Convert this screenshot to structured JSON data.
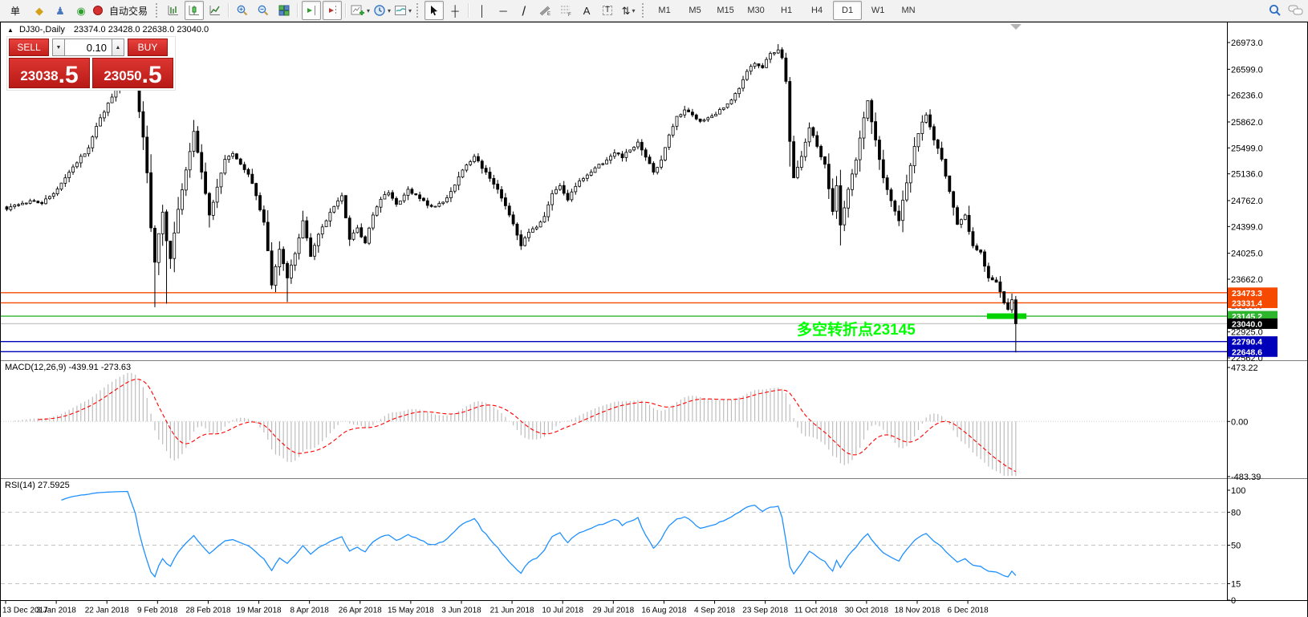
{
  "toolbar": {
    "new_order_label": "单",
    "autotrading_label": "自动交易",
    "icons": {
      "charts": "◆",
      "navigator": "♟",
      "data_window": "◉",
      "crosshair": "┼",
      "vertical_line": "│",
      "horizontal_line": "─",
      "trendline": "/",
      "channel": "E",
      "fibonacci": "F",
      "text": "A",
      "text_label": "T",
      "arrows": "⇅",
      "caret": "▾"
    },
    "timeframes": [
      {
        "label": "M1",
        "active": false
      },
      {
        "label": "M5",
        "active": false
      },
      {
        "label": "M15",
        "active": false
      },
      {
        "label": "M30",
        "active": false
      },
      {
        "label": "H1",
        "active": false
      },
      {
        "label": "H4",
        "active": false
      },
      {
        "label": "D1",
        "active": true
      },
      {
        "label": "W1",
        "active": false
      },
      {
        "label": "MN",
        "active": false
      }
    ]
  },
  "chart_header": {
    "collapse_marker": "▲",
    "symbol_period": "DJ30-,Daily",
    "ohlc": "23374.0 23428.0 22638.0 23040.0"
  },
  "trade_panel": {
    "sell_label": "SELL",
    "buy_label": "BUY",
    "volume": "0.10",
    "spin_down": "▼",
    "spin_up": "▲",
    "sell_price_main": "23038",
    "sell_price_frac": ".5",
    "buy_price_main": "23050",
    "buy_price_frac": ".5",
    "button_color": "#c9201c"
  },
  "indicator_labels": {
    "macd": "MACD(12,26,9) -439.91 -273.63",
    "rsi": "RSI(14) 27.5925"
  },
  "annotation": {
    "text": "多空转折点23145",
    "color": "#00ff00"
  },
  "chart_data": {
    "type": "candlestick",
    "symbol": "DJ30-",
    "period": "Daily",
    "title_ohlc": {
      "open": 23374.0,
      "high": 23428.0,
      "low": 22638.0,
      "close": 23040.0
    },
    "sell_price": 23038.5,
    "buy_price": 23050.5,
    "bars": 260,
    "price_axis_ticks": [
      26973.0,
      26599.0,
      26236.0,
      25862.0,
      25499.0,
      25136.0,
      24762.0,
      24399.0,
      24025.0,
      23662.0,
      23299.0,
      22925.0,
      22562.0
    ],
    "marked_levels": [
      {
        "price": 23473.3,
        "label": "23473.3",
        "color": "#f64a00",
        "kind": "resistance-line"
      },
      {
        "price": 23331.4,
        "label": "23331.4",
        "color": "#f64a00",
        "kind": "resistance-line"
      },
      {
        "price": 23145.2,
        "label": "23145.2",
        "color": "#2eb52e",
        "kind": "pivot-line"
      },
      {
        "price": 23040.0,
        "label": "23040.0",
        "color": "#000000",
        "line_color": "#c8c8c8",
        "kind": "current-price"
      },
      {
        "price": 22790.4,
        "label": "22790.4",
        "color": "#0000bb",
        "kind": "support-line"
      },
      {
        "price": 22648.6,
        "label": "22648.6",
        "color": "#0000bb",
        "kind": "support-line"
      }
    ],
    "highlight_box": {
      "price": 23145.2,
      "color": "#00d300"
    },
    "date_labels": [
      "13 Dec 2017",
      "3 Jan 2018",
      "22 Jan 2018",
      "9 Feb 2018",
      "28 Feb 2018",
      "19 Mar 2018",
      "8 Apr 2018",
      "26 Apr 2018",
      "15 May 2018",
      "3 Jun 2018",
      "21 Jun 2018",
      "10 Jul 2018",
      "29 Jul 2018",
      "16 Aug 2018",
      "4 Sep 2018",
      "23 Sep 2018",
      "11 Oct 2018",
      "30 Oct 2018",
      "18 Nov 2018",
      "6 Dec 2018"
    ],
    "bars_per_date_label": 13,
    "close_waypoints": [
      [
        0,
        24640
      ],
      [
        3,
        24700
      ],
      [
        6,
        24760
      ],
      [
        9,
        24720
      ],
      [
        12,
        24860
      ],
      [
        15,
        25080
      ],
      [
        18,
        25290
      ],
      [
        21,
        25500
      ],
      [
        24,
        25920
      ],
      [
        27,
        26210
      ],
      [
        29,
        26390
      ],
      [
        31,
        26560
      ],
      [
        33,
        26320
      ],
      [
        35,
        25650
      ],
      [
        36,
        25150
      ],
      [
        37,
        24380
      ],
      [
        38,
        23900
      ],
      [
        39,
        24300
      ],
      [
        40,
        24600
      ],
      [
        41,
        24200
      ],
      [
        42,
        23950
      ],
      [
        44,
        24640
      ],
      [
        46,
        25190
      ],
      [
        48,
        25730
      ],
      [
        50,
        25160
      ],
      [
        52,
        24560
      ],
      [
        54,
        24950
      ],
      [
        56,
        25340
      ],
      [
        58,
        25420
      ],
      [
        60,
        25270
      ],
      [
        62,
        25130
      ],
      [
        64,
        24830
      ],
      [
        66,
        24460
      ],
      [
        67,
        24060
      ],
      [
        68,
        23580
      ],
      [
        70,
        24080
      ],
      [
        72,
        23680
      ],
      [
        74,
        24020
      ],
      [
        76,
        24480
      ],
      [
        78,
        23980
      ],
      [
        80,
        24290
      ],
      [
        82,
        24480
      ],
      [
        84,
        24680
      ],
      [
        86,
        24830
      ],
      [
        88,
        24220
      ],
      [
        90,
        24380
      ],
      [
        92,
        24170
      ],
      [
        94,
        24560
      ],
      [
        96,
        24780
      ],
      [
        98,
        24870
      ],
      [
        100,
        24710
      ],
      [
        103,
        24920
      ],
      [
        106,
        24790
      ],
      [
        109,
        24680
      ],
      [
        112,
        24740
      ],
      [
        115,
        24980
      ],
      [
        118,
        25260
      ],
      [
        120,
        25380
      ],
      [
        123,
        25160
      ],
      [
        126,
        24920
      ],
      [
        129,
        24560
      ],
      [
        132,
        24130
      ],
      [
        134,
        24320
      ],
      [
        136,
        24390
      ],
      [
        138,
        24540
      ],
      [
        140,
        24860
      ],
      [
        142,
        24970
      ],
      [
        144,
        24770
      ],
      [
        146,
        24960
      ],
      [
        148,
        25070
      ],
      [
        150,
        25160
      ],
      [
        152,
        25270
      ],
      [
        154,
        25330
      ],
      [
        156,
        25430
      ],
      [
        158,
        25360
      ],
      [
        160,
        25470
      ],
      [
        162,
        25580
      ],
      [
        164,
        25370
      ],
      [
        166,
        25160
      ],
      [
        168,
        25330
      ],
      [
        170,
        25680
      ],
      [
        172,
        25940
      ],
      [
        174,
        26030
      ],
      [
        176,
        25960
      ],
      [
        178,
        25870
      ],
      [
        180,
        25920
      ],
      [
        182,
        25970
      ],
      [
        184,
        26060
      ],
      [
        186,
        26170
      ],
      [
        188,
        26330
      ],
      [
        190,
        26570
      ],
      [
        192,
        26680
      ],
      [
        194,
        26620
      ],
      [
        196,
        26820
      ],
      [
        198,
        26870
      ],
      [
        199,
        26760
      ],
      [
        200,
        26430
      ],
      [
        201,
        25590
      ],
      [
        202,
        25080
      ],
      [
        204,
        25380
      ],
      [
        206,
        25780
      ],
      [
        208,
        25520
      ],
      [
        210,
        25270
      ],
      [
        212,
        24610
      ],
      [
        213,
        24970
      ],
      [
        214,
        24420
      ],
      [
        216,
        24920
      ],
      [
        218,
        25330
      ],
      [
        220,
        25920
      ],
      [
        221,
        26160
      ],
      [
        223,
        25610
      ],
      [
        225,
        25080
      ],
      [
        227,
        24760
      ],
      [
        229,
        24480
      ],
      [
        231,
        25010
      ],
      [
        233,
        25520
      ],
      [
        235,
        25860
      ],
      [
        236,
        25960
      ],
      [
        238,
        25610
      ],
      [
        240,
        25340
      ],
      [
        242,
        24890
      ],
      [
        244,
        24430
      ],
      [
        246,
        24560
      ],
      [
        248,
        24130
      ],
      [
        250,
        24040
      ],
      [
        252,
        23680
      ],
      [
        254,
        23620
      ],
      [
        256,
        23330
      ],
      [
        257,
        23240
      ],
      [
        258,
        23374
      ],
      [
        259,
        23040
      ]
    ],
    "overrides": {
      "38": {
        "low": 23270
      },
      "41": {
        "low": 23320
      },
      "72": {
        "low": 23344
      },
      "198": {
        "high": 26951
      },
      "259": {
        "open": 23374,
        "high": 23428,
        "low": 22638,
        "close": 23040
      }
    },
    "macd": {
      "params": [
        12,
        26,
        9
      ],
      "current_main": -439.91,
      "current_signal": -273.63,
      "axis_labels": [
        "473.22",
        "0.00",
        "-483.39"
      ],
      "axis_range": [
        473.22,
        -483.39
      ],
      "histogram_color": "#bdbdbd",
      "signal_color": "#ff0000"
    },
    "rsi": {
      "period": 14,
      "current": 27.5925,
      "axis_labels": [
        "100",
        "80",
        "50",
        "15",
        "0"
      ],
      "levels": [
        80,
        50,
        15
      ],
      "line_color": "#1e90ff"
    }
  }
}
